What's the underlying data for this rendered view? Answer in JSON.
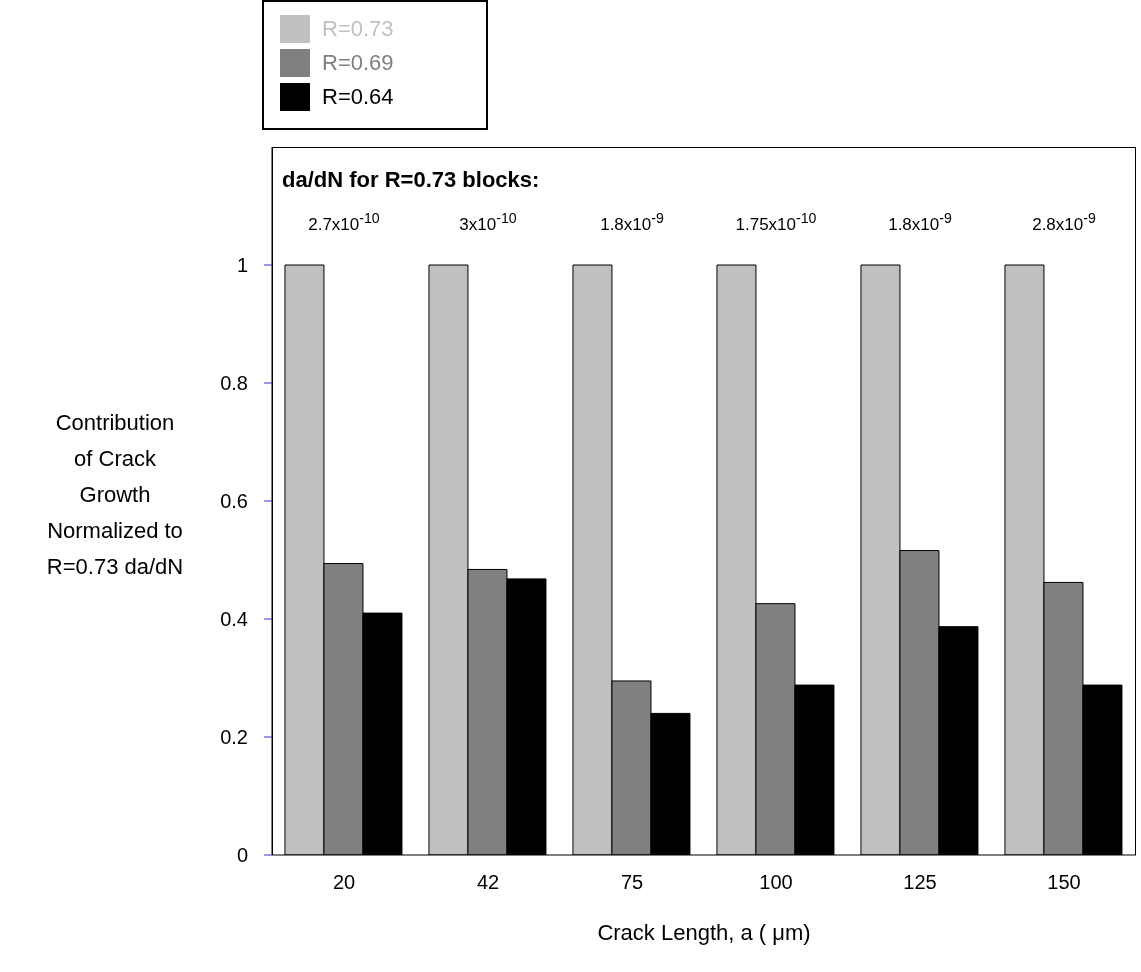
{
  "chart_data": {
    "type": "bar",
    "xlabel": "Crack Length, a ( μm)",
    "ylabel": "Contribution\nof Crack\nGrowth\nNormalized to\nR=0.73 da/dN",
    "categories": [
      "20",
      "42",
      "75",
      "100",
      "125",
      "150"
    ],
    "series": [
      {
        "name": "R=0.73",
        "color": "#c0c0c0",
        "values": [
          1,
          1,
          1,
          1,
          1,
          1
        ]
      },
      {
        "name": "R=0.69",
        "color": "#808080",
        "values": [
          0.494,
          0.484,
          0.295,
          0.426,
          0.516,
          0.462
        ]
      },
      {
        "name": "R=0.64",
        "color": "#000000",
        "values": [
          0.41,
          0.468,
          0.24,
          0.288,
          0.387,
          0.288
        ]
      }
    ],
    "ylim": [
      0,
      1.2
    ],
    "yticks": [
      0,
      0.2,
      0.4,
      0.6,
      0.8,
      1
    ],
    "grid": false,
    "legend": "top left",
    "annotations": [
      "da/dN for R=0.73 blocks:",
      "2.7x10$^{-10}$",
      "3x10$^{-10}$",
      "1.8x10$^{-9}$",
      "1.75x10$^{-10}$",
      "1.8x10$^{-9}$",
      "2.8x10$^{-9}$"
    ]
  }
}
